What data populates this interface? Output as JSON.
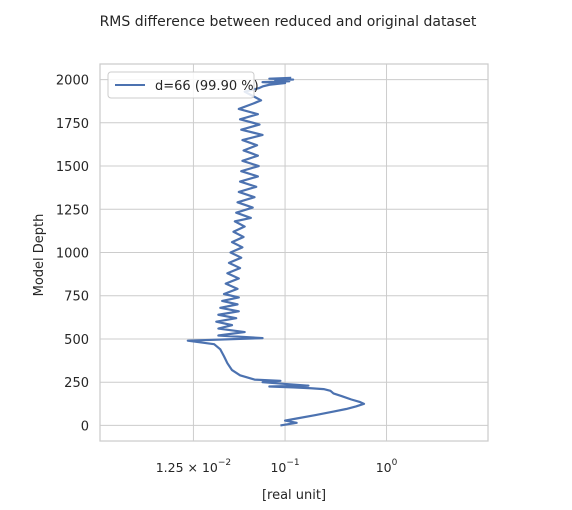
{
  "chart_data": {
    "type": "line",
    "title": "RMS difference between reduced and original dataset",
    "xlabel": "[real unit]",
    "ylabel": "Model Depth",
    "xscale": "log",
    "xlim": [
      0.0015,
      10
    ],
    "ylim": [
      -90,
      2090
    ],
    "grid": true,
    "legend_position": "top-left",
    "x_ticks": [
      {
        "value": 0.0125,
        "base": "1.25 × 10",
        "exp": "−2"
      },
      {
        "value": 0.1,
        "base": "10",
        "exp": "−1"
      },
      {
        "value": 1,
        "base": "10",
        "exp": "0"
      }
    ],
    "y_ticks": [
      0,
      250,
      500,
      750,
      1000,
      1250,
      1500,
      1750,
      2000
    ],
    "series": [
      {
        "name": "d=66 (99.90 %)",
        "color": "#4c72b0",
        "points": [
          [
            0.09,
            0
          ],
          [
            0.13,
            15
          ],
          [
            0.1,
            28
          ],
          [
            0.13,
            40
          ],
          [
            0.2,
            60
          ],
          [
            0.3,
            80
          ],
          [
            0.4,
            95
          ],
          [
            0.5,
            110
          ],
          [
            0.6,
            125
          ],
          [
            0.55,
            135
          ],
          [
            0.45,
            150
          ],
          [
            0.36,
            170
          ],
          [
            0.3,
            185
          ],
          [
            0.28,
            200
          ],
          [
            0.24,
            210
          ],
          [
            0.18,
            215
          ],
          [
            0.12,
            220
          ],
          [
            0.07,
            225
          ],
          [
            0.17,
            230
          ],
          [
            0.1,
            240
          ],
          [
            0.06,
            250
          ],
          [
            0.09,
            258
          ],
          [
            0.05,
            265
          ],
          [
            0.036,
            290
          ],
          [
            0.03,
            320
          ],
          [
            0.027,
            360
          ],
          [
            0.025,
            400
          ],
          [
            0.023,
            440
          ],
          [
            0.02,
            470
          ],
          [
            0.011,
            490
          ],
          [
            0.06,
            505
          ],
          [
            0.022,
            520
          ],
          [
            0.04,
            540
          ],
          [
            0.022,
            560
          ],
          [
            0.03,
            580
          ],
          [
            0.021,
            600
          ],
          [
            0.033,
            620
          ],
          [
            0.022,
            640
          ],
          [
            0.035,
            660
          ],
          [
            0.023,
            680
          ],
          [
            0.034,
            700
          ],
          [
            0.024,
            720
          ],
          [
            0.035,
            740
          ],
          [
            0.025,
            760
          ],
          [
            0.034,
            790
          ],
          [
            0.026,
            820
          ],
          [
            0.035,
            850
          ],
          [
            0.027,
            880
          ],
          [
            0.036,
            910
          ],
          [
            0.028,
            940
          ],
          [
            0.037,
            970
          ],
          [
            0.029,
            1000
          ],
          [
            0.038,
            1030
          ],
          [
            0.03,
            1060
          ],
          [
            0.039,
            1090
          ],
          [
            0.031,
            1120
          ],
          [
            0.04,
            1150
          ],
          [
            0.032,
            1180
          ],
          [
            0.046,
            1200
          ],
          [
            0.033,
            1230
          ],
          [
            0.048,
            1260
          ],
          [
            0.034,
            1290
          ],
          [
            0.05,
            1320
          ],
          [
            0.035,
            1350
          ],
          [
            0.052,
            1380
          ],
          [
            0.036,
            1410
          ],
          [
            0.054,
            1440
          ],
          [
            0.037,
            1470
          ],
          [
            0.055,
            1500
          ],
          [
            0.038,
            1530
          ],
          [
            0.054,
            1560
          ],
          [
            0.039,
            1590
          ],
          [
            0.053,
            1620
          ],
          [
            0.038,
            1650
          ],
          [
            0.06,
            1680
          ],
          [
            0.037,
            1710
          ],
          [
            0.056,
            1740
          ],
          [
            0.036,
            1770
          ],
          [
            0.054,
            1800
          ],
          [
            0.035,
            1830
          ],
          [
            0.048,
            1860
          ],
          [
            0.058,
            1880
          ],
          [
            0.05,
            1900
          ],
          [
            0.04,
            1930
          ],
          [
            0.055,
            1950
          ],
          [
            0.06,
            1960
          ],
          [
            0.07,
            1970
          ],
          [
            0.1,
            1980
          ],
          [
            0.06,
            1985
          ],
          [
            0.11,
            1990
          ],
          [
            0.08,
            1995
          ],
          [
            0.12,
            2000
          ],
          [
            0.07,
            2005
          ],
          [
            0.115,
            2010
          ]
        ]
      }
    ]
  }
}
